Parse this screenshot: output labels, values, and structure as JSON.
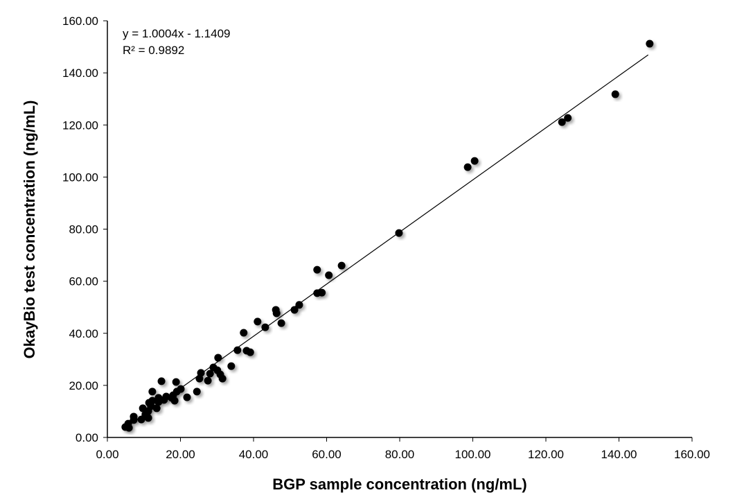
{
  "chart_data": {
    "type": "scatter",
    "title": "",
    "xlabel": "BGP sample concentration (ng/mL)",
    "ylabel": "OkayBio test concentration (ng/mL)",
    "xlim": [
      0,
      160
    ],
    "ylim": [
      0,
      160
    ],
    "xticks": [
      "0.00",
      "20.00",
      "40.00",
      "60.00",
      "80.00",
      "100.00",
      "120.00",
      "140.00",
      "160.00"
    ],
    "yticks": [
      "0.00",
      "20.00",
      "40.00",
      "60.00",
      "80.00",
      "100.00",
      "120.00",
      "140.00",
      "160.00"
    ],
    "grid": false,
    "annotations": {
      "equation": "y = 1.0004x - 1.1409",
      "r2": "R² = 0.9892"
    },
    "trendline": {
      "slope": 1.0004,
      "intercept": -1.1409,
      "x_range": [
        4.5,
        148
      ]
    },
    "marker_color": "#000000",
    "points": [
      [
        148.4,
        151.2
      ],
      [
        139.0,
        131.8
      ],
      [
        124.4,
        121.1
      ],
      [
        126.0,
        122.7
      ],
      [
        100.5,
        106.2
      ],
      [
        98.6,
        103.8
      ],
      [
        79.8,
        78.5
      ],
      [
        64.1,
        66.0
      ],
      [
        60.6,
        62.3
      ],
      [
        57.4,
        64.4
      ],
      [
        57.4,
        55.4
      ],
      [
        58.7,
        55.6
      ],
      [
        51.2,
        49.0
      ],
      [
        52.5,
        50.9
      ],
      [
        46.1,
        49.0
      ],
      [
        46.3,
        47.7
      ],
      [
        47.6,
        43.9
      ],
      [
        43.2,
        42.3
      ],
      [
        41.1,
        44.5
      ],
      [
        37.3,
        40.2
      ],
      [
        38.1,
        33.3
      ],
      [
        39.1,
        32.7
      ],
      [
        35.6,
        33.5
      ],
      [
        33.9,
        27.4
      ],
      [
        30.3,
        30.6
      ],
      [
        30.1,
        25.8
      ],
      [
        30.9,
        24.2
      ],
      [
        31.5,
        22.6
      ],
      [
        29.0,
        26.9
      ],
      [
        28.1,
        24.5
      ],
      [
        27.5,
        21.8
      ],
      [
        25.6,
        24.8
      ],
      [
        25.2,
        22.6
      ],
      [
        24.5,
        17.6
      ],
      [
        21.8,
        15.4
      ],
      [
        20.1,
        18.6
      ],
      [
        18.8,
        21.3
      ],
      [
        19.0,
        17.6
      ],
      [
        18.4,
        14.1
      ],
      [
        18.0,
        16.2
      ],
      [
        17.6,
        15.2
      ],
      [
        14.8,
        21.6
      ],
      [
        12.3,
        17.6
      ],
      [
        16.1,
        15.7
      ],
      [
        15.5,
        14.4
      ],
      [
        14.0,
        15.2
      ],
      [
        14.0,
        13.6
      ],
      [
        13.5,
        11.2
      ],
      [
        12.3,
        14.1
      ],
      [
        11.4,
        13.3
      ],
      [
        11.9,
        12.0
      ],
      [
        11.2,
        10.1
      ],
      [
        10.4,
        8.8
      ],
      [
        11.2,
        7.5
      ],
      [
        9.7,
        11.2
      ],
      [
        9.3,
        6.9
      ],
      [
        7.2,
        8.0
      ],
      [
        7.2,
        6.7
      ],
      [
        5.7,
        5.3
      ],
      [
        4.9,
        4.0
      ],
      [
        5.9,
        3.7
      ]
    ]
  }
}
